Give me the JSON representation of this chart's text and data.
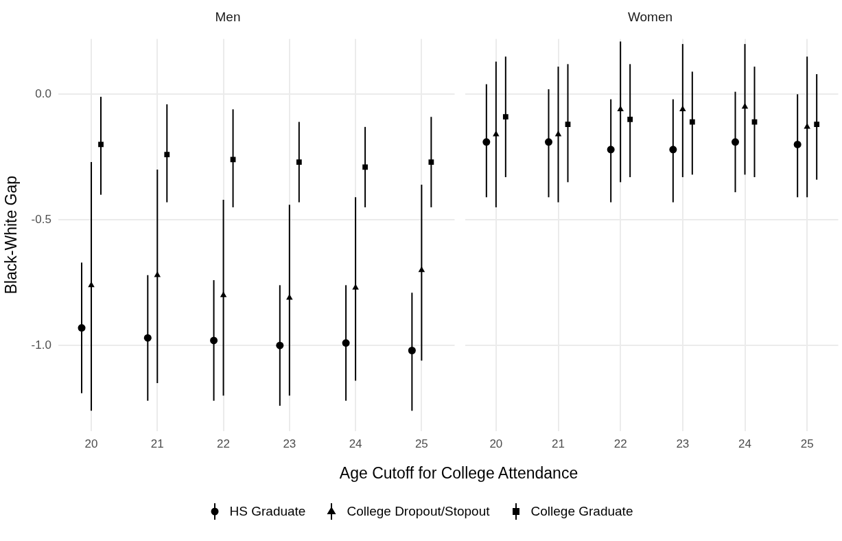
{
  "chart_data": [
    {
      "type": "scatter",
      "title": "Men",
      "xlabel": "Age Cutoff for College Attendance",
      "ylabel": "Black-White Gap",
      "categories": [
        "20",
        "21",
        "22",
        "23",
        "24",
        "25"
      ],
      "ylim": [
        -1.34,
        0.22
      ],
      "yticks": [
        {
          "value": -1,
          "label": "-1.0"
        },
        -0.5,
        {
          "value": 0,
          "label": "0.0"
        }
      ],
      "grid": true,
      "legend": "bottom",
      "series": [
        {
          "name": "HS Graduate",
          "color": "#000000",
          "marker": "circle",
          "values": [
            -0.93,
            -0.97,
            -0.98,
            -1.0,
            -0.99,
            -1.02
          ],
          "errors": [
            [
              -1.19,
              -0.67
            ],
            [
              -1.22,
              -0.72
            ],
            [
              -1.22,
              -0.74
            ],
            [
              -1.24,
              -0.76
            ],
            [
              -1.22,
              -0.76
            ],
            [
              -1.26,
              -0.79
            ]
          ]
        },
        {
          "name": "College Dropout/Stopout",
          "color": "#000000",
          "marker": "triangle",
          "values": [
            -0.76,
            -0.72,
            -0.8,
            -0.81,
            -0.77,
            -0.7
          ],
          "errors": [
            [
              -1.26,
              -0.27
            ],
            [
              -1.15,
              -0.3
            ],
            [
              -1.2,
              -0.42
            ],
            [
              -1.2,
              -0.44
            ],
            [
              -1.14,
              -0.41
            ],
            [
              -1.06,
              -0.36
            ]
          ]
        },
        {
          "name": "College Graduate",
          "color": "#000000",
          "marker": "square",
          "values": [
            -0.2,
            -0.24,
            -0.26,
            -0.27,
            -0.29,
            -0.27
          ],
          "errors": [
            [
              -0.4,
              -0.01
            ],
            [
              -0.43,
              -0.04
            ],
            [
              -0.45,
              -0.06
            ],
            [
              -0.43,
              -0.11
            ],
            [
              -0.45,
              -0.13
            ],
            [
              -0.45,
              -0.09
            ]
          ]
        }
      ]
    },
    {
      "type": "scatter",
      "title": "Women",
      "categories": [
        "20",
        "21",
        "22",
        "23",
        "24",
        "25"
      ],
      "ylim": [
        -1.34,
        0.22
      ],
      "yticks": [
        -1,
        -0.5,
        0
      ],
      "grid": true,
      "tick_labels": "x",
      "series": [
        {
          "color": "#000000",
          "marker": "circle",
          "values": [
            -0.19,
            -0.19,
            -0.22,
            -0.22,
            -0.19,
            -0.2
          ],
          "errors": [
            [
              -0.41,
              0.04
            ],
            [
              -0.41,
              0.02
            ],
            [
              -0.43,
              -0.02
            ],
            [
              -0.43,
              -0.02
            ],
            [
              -0.39,
              0.01
            ],
            [
              -0.41,
              0.0
            ]
          ]
        },
        {
          "color": "#000000",
          "marker": "triangle",
          "values": [
            -0.16,
            -0.16,
            -0.06,
            -0.06,
            -0.05,
            -0.13
          ],
          "errors": [
            [
              -0.45,
              0.13
            ],
            [
              -0.43,
              0.11
            ],
            [
              -0.35,
              0.21
            ],
            [
              -0.33,
              0.2
            ],
            [
              -0.32,
              0.2
            ],
            [
              -0.41,
              0.15
            ]
          ]
        },
        {
          "color": "#000000",
          "marker": "square",
          "values": [
            -0.09,
            -0.12,
            -0.1,
            -0.11,
            -0.11,
            -0.12
          ],
          "errors": [
            [
              -0.33,
              0.15
            ],
            [
              -0.35,
              0.12
            ],
            [
              -0.33,
              0.12
            ],
            [
              -0.32,
              0.09
            ],
            [
              -0.33,
              0.11
            ],
            [
              -0.34,
              0.08
            ]
          ]
        }
      ]
    }
  ]
}
